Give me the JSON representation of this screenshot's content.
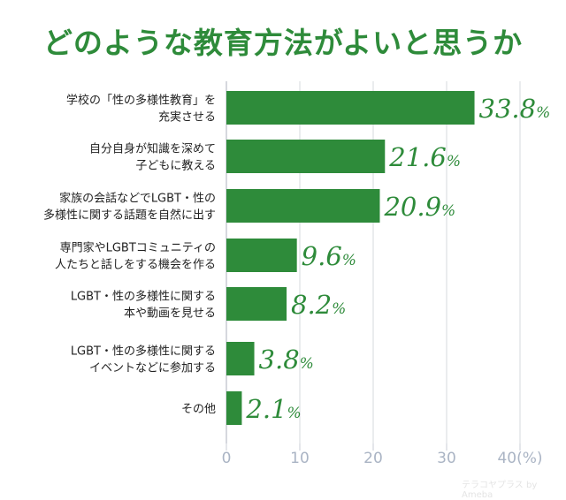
{
  "chart_data": {
    "type": "bar",
    "orientation": "horizontal",
    "title": "どのような教育方法がよいと思うか",
    "categories": [
      [
        "学校の「性の多様性教育」を",
        "充実させる"
      ],
      [
        "自分自身が知識を深めて",
        "子どもに教える"
      ],
      [
        "家族の会話などでLGBT・性の",
        "多様性に関する話題を自然に出す"
      ],
      [
        "専門家やLGBTコミュニティの",
        "人たちと話しをする機会を作る"
      ],
      [
        "LGBT・性の多様性に関する",
        "本や動画を見せる"
      ],
      [
        "LGBT・性の多様性に関する",
        "イベントなどに参加する"
      ],
      [
        "その他"
      ]
    ],
    "values": [
      33.8,
      21.6,
      20.9,
      9.6,
      8.2,
      3.8,
      2.1
    ],
    "value_unit": "%",
    "xlim": [
      0,
      40
    ],
    "xticks": [
      "0",
      "10",
      "20",
      "30",
      "40(%)"
    ],
    "grid": true,
    "bar_color": "#2e8b3a"
  },
  "watermark": "テラコヤプラス by Ameba"
}
